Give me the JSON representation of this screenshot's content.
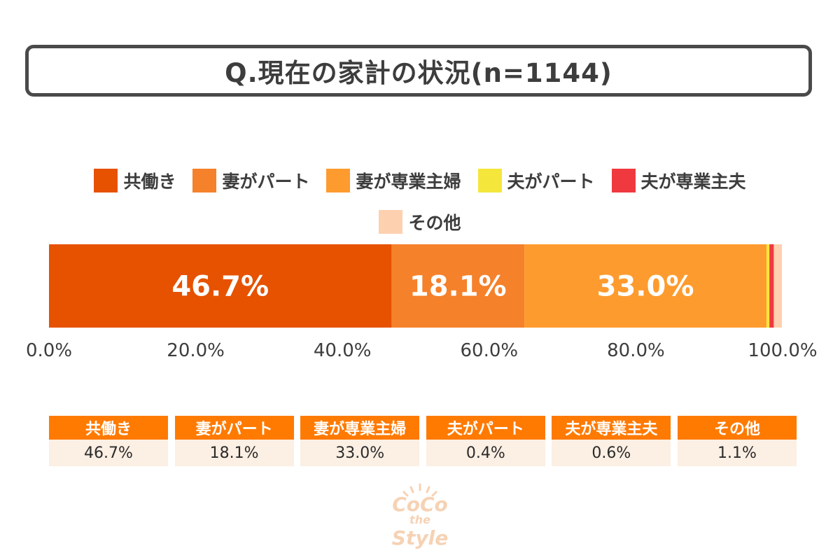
{
  "title": "Q.現在の家計の状況(n=1144)",
  "chart_data": {
    "type": "bar",
    "orientation": "horizontal-stacked",
    "title": "Q.現在の家計の状況(n=1144)",
    "n": 1144,
    "categories": [
      "共働き",
      "妻がパート",
      "妻が専業主婦",
      "夫がパート",
      "夫が専業主夫",
      "その他"
    ],
    "values": [
      46.7,
      18.1,
      33.0,
      0.4,
      0.6,
      1.1
    ],
    "colors": [
      "#e65200",
      "#f5812a",
      "#fe9b2e",
      "#f5e63c",
      "#f0393f",
      "#fdd0b0"
    ],
    "data_labels": [
      "46.7%",
      "18.1%",
      "33.0%",
      "",
      "",
      ""
    ],
    "xlim": [
      0,
      100
    ],
    "x_ticks": [
      0,
      20,
      40,
      60,
      80,
      100
    ],
    "x_tick_labels": [
      "0.0%",
      "20.0%",
      "40.0%",
      "60.0%",
      "80.0%",
      "100.0%"
    ],
    "xlabel": "",
    "ylabel": "",
    "legend_placement": "top-center",
    "grid": false
  },
  "legend": {
    "row1": [
      {
        "label": "共働き",
        "color": "#e65200"
      },
      {
        "label": "妻がパート",
        "color": "#f5812a"
      },
      {
        "label": "妻が専業主婦",
        "color": "#fe9b2e"
      },
      {
        "label": "夫がパート",
        "color": "#f5e63c"
      },
      {
        "label": "夫が専業主夫",
        "color": "#f0393f"
      }
    ],
    "row2": [
      {
        "label": "その他",
        "color": "#fdd0b0"
      }
    ]
  },
  "table": {
    "headers": [
      "共働き",
      "妻がパート",
      "妻が専業主婦",
      "夫がパート",
      "夫が専業主夫",
      "その他"
    ],
    "values": [
      "46.7%",
      "18.1%",
      "33.0%",
      "0.4%",
      "0.6%",
      "1.1%"
    ],
    "header_color": "#ff7a00",
    "cell_color": "#fcefe3"
  },
  "watermark": {
    "line1": "CoCo",
    "line2": "the",
    "line3": "Style",
    "color": "#f6d2b4"
  }
}
